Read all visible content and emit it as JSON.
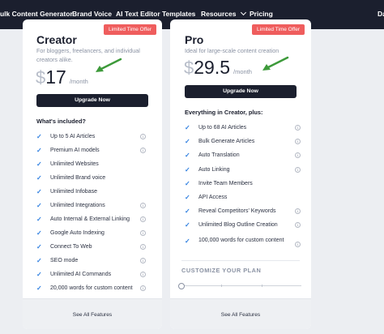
{
  "nav": {
    "items": [
      {
        "label": "ulk Content Generator"
      },
      {
        "label": "Brand Voice"
      },
      {
        "label": "AI Text Editor"
      },
      {
        "label": "Templates"
      },
      {
        "label": "Resources"
      },
      {
        "label": "Pricing"
      }
    ],
    "trailing": "Da"
  },
  "colors": {
    "nav_bg": "#1b1f2e",
    "badge": "#ef5d5d",
    "check": "#2f7fe0",
    "arrow": "#3d9a3a"
  },
  "creator": {
    "badge": "Limited Time Offer",
    "name": "Creator",
    "desc": "For bloggers, freelancers, and individual creators alike.",
    "currency": "$",
    "price": "17",
    "period": "/month",
    "button": "Upgrade Now",
    "section_title": "What's included?",
    "features": [
      {
        "text": "Up to 5 AI Articles",
        "info": true
      },
      {
        "text": "Premium AI models",
        "info": true
      },
      {
        "text": "Unlimited Websites",
        "info": false
      },
      {
        "text": "Unlimited Brand voice",
        "info": false
      },
      {
        "text": "Unlimited Infobase",
        "info": false
      },
      {
        "text": "Unlimited Integrations",
        "info": true
      },
      {
        "text": "Auto Internal & External Linking",
        "info": true
      },
      {
        "text": "Google Auto Indexing",
        "info": true
      },
      {
        "text": "Connect To Web",
        "info": true
      },
      {
        "text": "SEO mode",
        "info": true
      },
      {
        "text": "Unlimited AI Commands",
        "info": true
      },
      {
        "text": "20,000 words for custom content",
        "info": true
      }
    ],
    "footer": "See All Features"
  },
  "pro": {
    "badge": "Limited Time Offer",
    "name": "Pro",
    "desc": "Ideal for large-scale content creation",
    "currency": "$",
    "price": "29.5",
    "period": "/month",
    "button": "Upgrade Now",
    "section_title": "Everything in Creator, plus:",
    "features": [
      {
        "text": "Up to 68 AI Articles",
        "info": true
      },
      {
        "text": "Bulk Generate Articles",
        "info": true
      },
      {
        "text": "Auto Translation",
        "info": true
      },
      {
        "text": "Auto Linking",
        "info": true
      },
      {
        "text": "Invite Team Members",
        "info": false
      },
      {
        "text": "API Access",
        "info": false
      },
      {
        "text": "Reveal Competitors' Keywords",
        "info": true
      },
      {
        "text": "Unlimited Blog Outline Creation",
        "info": true
      },
      {
        "text": "100,000 words for custom content",
        "info": true
      }
    ],
    "customize": "CUSTOMIZE YOUR PLAN",
    "footer": "See All Features"
  }
}
